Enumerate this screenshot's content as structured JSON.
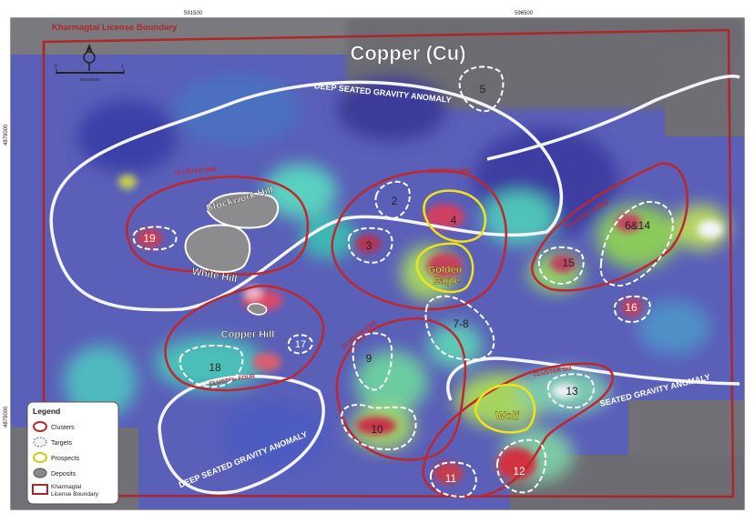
{
  "map": {
    "title": "Copper (Cu)",
    "license_boundary_label": "Kharmagtal License Boundary",
    "coords": {
      "top": [
        "591500",
        "596500"
      ],
      "left": [
        "4879000",
        "4875000"
      ]
    },
    "scale_label": "Kilometres",
    "scale_ticks": [
      "0",
      "1"
    ],
    "anomaly_labels": [
      "DEEP SEATED GRAVITY ANOMALY",
      "DEEP SEATED GRAVITY ANOMALY",
      "SEATED GRAVITY ANOMALY"
    ],
    "clusters": [
      "CLUSTER ONE",
      "CLUSTER TWO",
      "CLUSTER THREE",
      "CLUSTER FOUR",
      "CLUSTER FIVE",
      "CLUSTER SIX"
    ],
    "deposits": [
      "Stockwork Hill",
      "White Hill",
      "Copper Hill"
    ],
    "prospects": [
      "Golden Eagle",
      "Wolf",
      "4"
    ],
    "targets": [
      "5",
      "2",
      "3",
      "19",
      "7-8",
      "17",
      "18",
      "9",
      "10",
      "11",
      "12",
      "13",
      "15",
      "6&14",
      "16"
    ]
  },
  "legend": {
    "title": "Legend",
    "items": [
      "Clusters",
      "Targets",
      "Prospects",
      "Deposits",
      "Kharmagtal License Boundary"
    ]
  },
  "colors": {
    "cluster": "#c0272d",
    "target": "#ffffff",
    "prospect": "#f0e21c",
    "deposit": "#8a8a8a",
    "boundary": "#b0252b",
    "anomaly": "#ffffff"
  }
}
